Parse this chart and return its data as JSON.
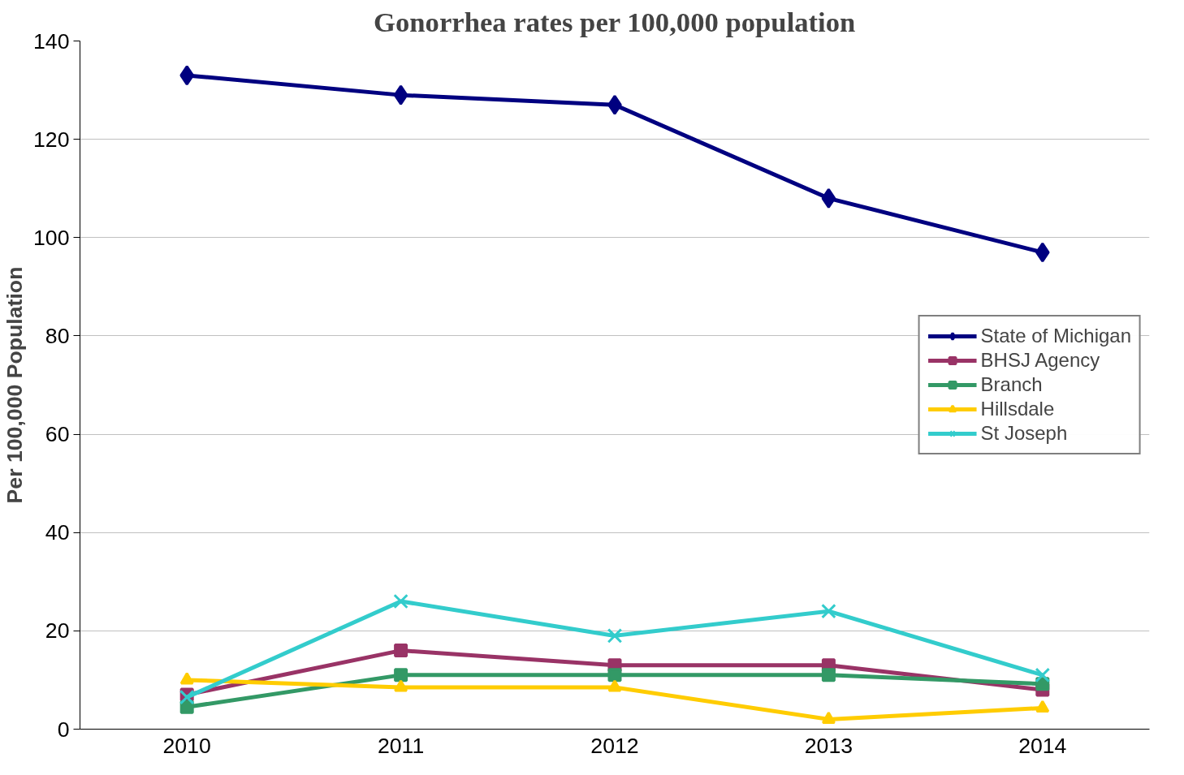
{
  "chart_data": {
    "type": "line",
    "title": "Gonorrhea rates per 100,000 population",
    "ylabel": "Per 100,000 Population",
    "categories": [
      "2010",
      "2011",
      "2012",
      "2013",
      "2014"
    ],
    "series": [
      {
        "name": "State of Michigan",
        "color": "#000080",
        "marker": "diamond",
        "values": [
          133,
          129,
          127,
          108,
          97
        ]
      },
      {
        "name": "BHSJ Agency",
        "color": "#993366",
        "marker": "square",
        "values": [
          7,
          16,
          13,
          13,
          8
        ]
      },
      {
        "name": "Branch",
        "color": "#339966",
        "marker": "square",
        "values": [
          4.5,
          11,
          11,
          11,
          9.2
        ]
      },
      {
        "name": "Hillsdale",
        "color": "#ffcc00",
        "marker": "triangle",
        "values": [
          10,
          8.5,
          8.5,
          2,
          4.3
        ]
      },
      {
        "name": "St Joseph",
        "color": "#33cccc",
        "marker": "cross",
        "values": [
          6.5,
          26,
          19,
          24,
          11
        ]
      }
    ],
    "ylim": [
      0,
      140
    ],
    "yticks": [
      0,
      20,
      40,
      60,
      80,
      100,
      120,
      140
    ],
    "grid": "y",
    "legend": "right"
  }
}
